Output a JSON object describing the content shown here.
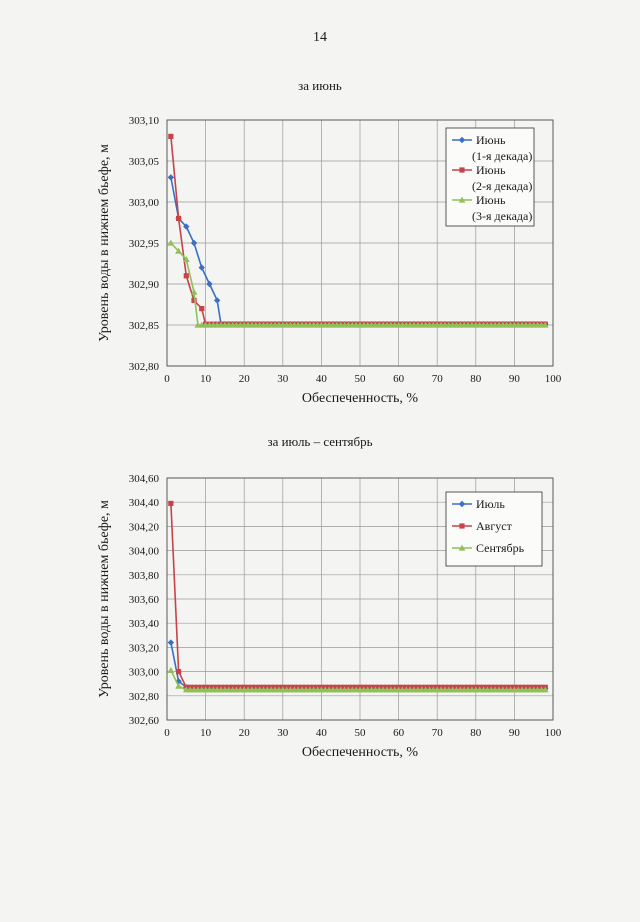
{
  "page_number": "14",
  "chart_data": [
    {
      "type": "line",
      "section_title": "за июнь",
      "title": "",
      "xlabel": "Обеспеченность, %",
      "ylabel": "Уровень воды в нижнем бьефе, м",
      "xlim": [
        0,
        100
      ],
      "ylim": [
        302.8,
        303.1
      ],
      "xticks": [
        "0",
        "10",
        "20",
        "30",
        "40",
        "50",
        "60",
        "70",
        "80",
        "90",
        "100"
      ],
      "yticks": [
        "302,80",
        "302,85",
        "302,90",
        "302,95",
        "303,00",
        "303,05",
        "303,10"
      ],
      "grid": true,
      "legend_position": "top-right",
      "series": [
        {
          "name_lines": [
            "Июнь",
            "(1-я декада)"
          ],
          "color": "#3a6fc4",
          "marker": "diamond",
          "x": [
            1,
            3,
            5,
            7,
            9,
            11,
            13
          ],
          "y": [
            303.03,
            302.98,
            302.97,
            302.95,
            302.92,
            302.9,
            302.88
          ],
          "flat_from": 13,
          "flat_to": 98,
          "flat_value": 302.851
        },
        {
          "name_lines": [
            "Июнь",
            "(2-я декада)"
          ],
          "color": "#c8424a",
          "marker": "square",
          "x": [
            1,
            3,
            5,
            7,
            9
          ],
          "y": [
            303.08,
            302.98,
            302.91,
            302.88,
            302.87
          ],
          "flat_from": 9,
          "flat_to": 98,
          "flat_value": 302.851
        },
        {
          "name_lines": [
            "Июнь",
            "(3-я декада)"
          ],
          "color": "#8fc05a",
          "marker": "triangle",
          "x": [
            1,
            3,
            5,
            7
          ],
          "y": [
            302.95,
            302.94,
            302.93,
            302.89
          ],
          "flat_from": 7,
          "flat_to": 98,
          "flat_value": 302.85
        }
      ]
    },
    {
      "type": "line",
      "section_title": "за июль – сентябрь",
      "title": "",
      "xlabel": "Обеспеченность, %",
      "ylabel": "Уровень воды в нижнем бьефе, м",
      "xlim": [
        0,
        100
      ],
      "ylim": [
        302.6,
        304.6
      ],
      "xticks": [
        "0",
        "10",
        "20",
        "30",
        "40",
        "50",
        "60",
        "70",
        "80",
        "90",
        "100"
      ],
      "yticks": [
        "302,60",
        "302,80",
        "303,00",
        "303,20",
        "303,40",
        "303,60",
        "303,80",
        "304,00",
        "304,20",
        "304,40",
        "304,60"
      ],
      "grid": true,
      "legend_position": "top-right",
      "series": [
        {
          "name_lines": [
            "Июль"
          ],
          "color": "#3a6fc4",
          "marker": "diamond",
          "x": [
            1,
            3,
            5
          ],
          "y": [
            303.24,
            302.92,
            302.87
          ],
          "flat_from": 5,
          "flat_to": 98,
          "flat_value": 302.86
        },
        {
          "name_lines": [
            "Август"
          ],
          "color": "#c8424a",
          "marker": "square",
          "x": [
            1,
            3,
            5
          ],
          "y": [
            304.39,
            303.0,
            302.87
          ],
          "flat_from": 5,
          "flat_to": 98,
          "flat_value": 302.87
        },
        {
          "name_lines": [
            "Сентябрь"
          ],
          "color": "#8fc05a",
          "marker": "triangle",
          "x": [
            1,
            3,
            5
          ],
          "y": [
            303.01,
            302.88,
            302.85
          ],
          "flat_from": 5,
          "flat_to": 98,
          "flat_value": 302.85
        }
      ]
    }
  ]
}
